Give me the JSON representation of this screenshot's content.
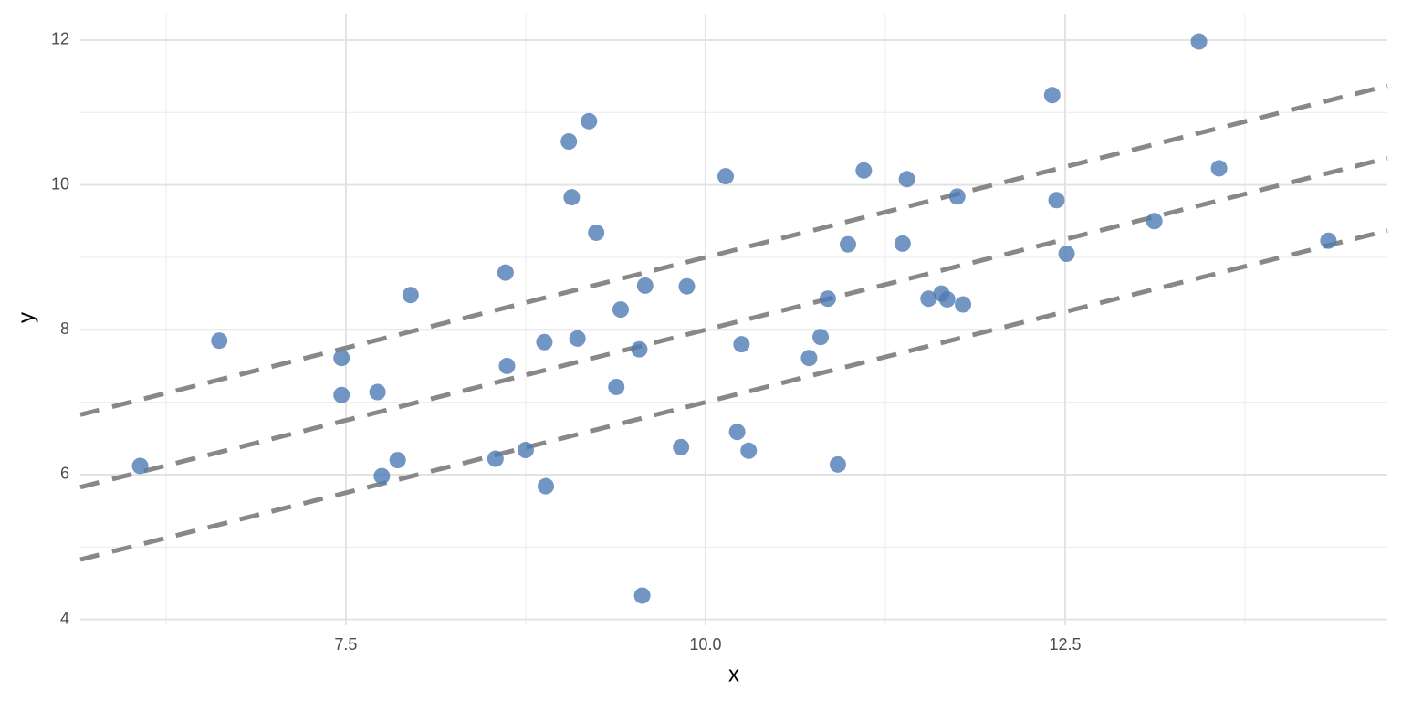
{
  "chart_data": {
    "type": "scatter",
    "x_label": "x",
    "y_label": "y",
    "xlim": [
      5.654,
      14.74
    ],
    "ylim": [
      3.92,
      12.365
    ],
    "xticks": [
      7.5,
      {
        "value": 10,
        "label": "10.0"
      },
      12.5
    ],
    "yticks": [
      4,
      6,
      8,
      10,
      12
    ],
    "x_minor_ticks": [
      6.25,
      8.75,
      11.25,
      13.75
    ],
    "y_minor_ticks": [
      5,
      7,
      9,
      11
    ],
    "grid": true,
    "series": [
      {
        "color": "#4f7cb4",
        "x": [
          6.07,
          6.62,
          7.47,
          7.47,
          7.72,
          7.75,
          7.86,
          7.95,
          8.54,
          8.61,
          8.62,
          8.75,
          8.88,
          8.89,
          9.05,
          9.07,
          9.11,
          9.19,
          9.24,
          9.38,
          9.41,
          9.54,
          9.56,
          9.58,
          9.83,
          9.87,
          10.14,
          10.22,
          10.25,
          10.3,
          10.72,
          10.8,
          10.85,
          10.92,
          10.99,
          11.1,
          11.37,
          11.4,
          11.55,
          11.64,
          11.68,
          11.75,
          11.79,
          12.41,
          12.44,
          12.51,
          13.12,
          13.43,
          13.57,
          14.33
        ],
        "values": [
          6.12,
          7.85,
          7.61,
          7.1,
          7.14,
          5.98,
          6.2,
          8.48,
          6.22,
          8.79,
          7.5,
          6.34,
          7.83,
          5.84,
          10.6,
          9.83,
          7.88,
          10.88,
          9.34,
          7.21,
          8.28,
          7.73,
          4.33,
          8.61,
          6.38,
          8.6,
          10.12,
          6.59,
          7.8,
          6.33,
          7.61,
          7.9,
          8.43,
          6.14,
          9.18,
          10.2,
          9.19,
          10.08,
          8.43,
          8.5,
          8.42,
          9.84,
          8.35,
          11.24,
          9.79,
          9.05,
          9.5,
          11.98,
          10.23,
          9.23
        ]
      }
    ],
    "lines": [
      {
        "intercept": 4,
        "slope": 0.5,
        "color": "#888888",
        "linestyle": "dashed"
      },
      {
        "intercept": 3,
        "slope": 0.5,
        "color": "#888888",
        "linestyle": "dashed"
      },
      {
        "intercept": 2,
        "slope": 0.5,
        "color": "#888888",
        "linestyle": "dashed"
      }
    ]
  }
}
